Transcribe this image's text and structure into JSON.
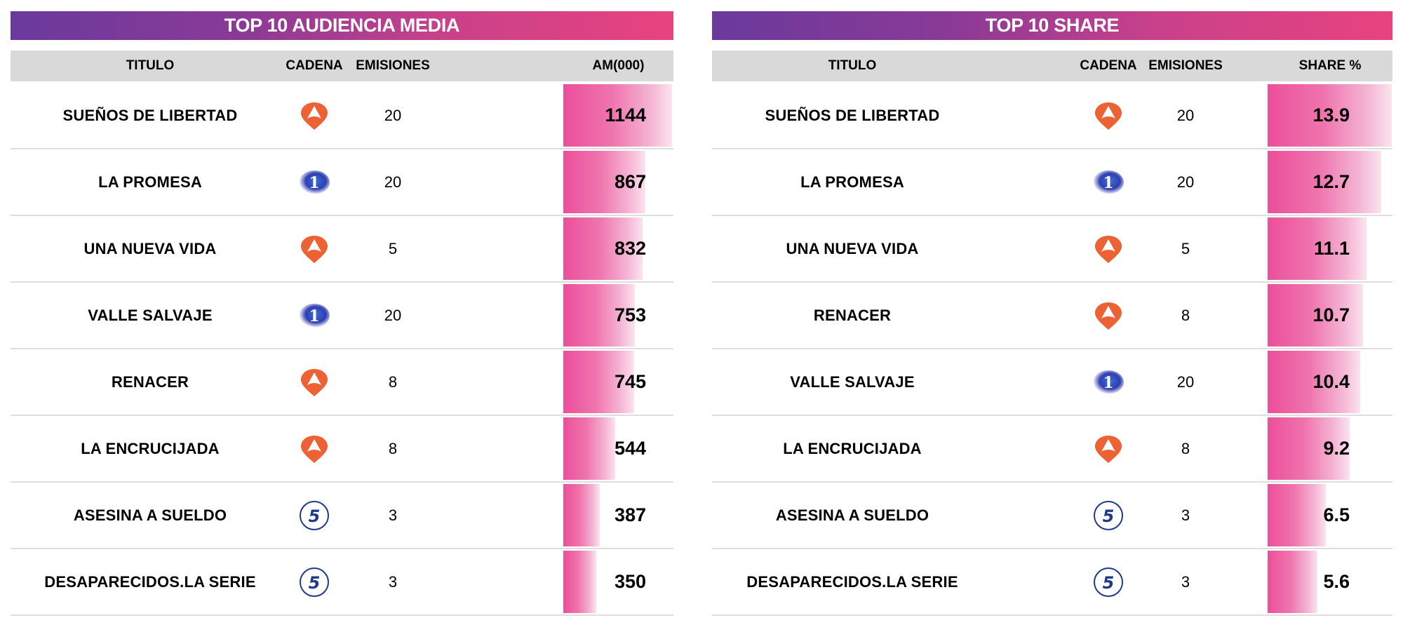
{
  "left": {
    "title": "TOP 10 AUDIENCIA MEDIA",
    "headers": {
      "titulo": "TITULO",
      "cadena": "CADENA",
      "emisiones": "EMISIONES",
      "metric": "AM(000)"
    },
    "rows": [
      {
        "titulo": "SUEÑOS DE LIBERTAD",
        "cadena": "antena3",
        "emisiones": "20",
        "value": "1144",
        "num": 1144
      },
      {
        "titulo": "LA PROMESA",
        "cadena": "la1",
        "emisiones": "20",
        "value": "867",
        "num": 867
      },
      {
        "titulo": "UNA NUEVA VIDA",
        "cadena": "antena3",
        "emisiones": "5",
        "value": "832",
        "num": 832
      },
      {
        "titulo": "VALLE SALVAJE",
        "cadena": "la1",
        "emisiones": "20",
        "value": "753",
        "num": 753
      },
      {
        "titulo": "RENACER",
        "cadena": "antena3",
        "emisiones": "8",
        "value": "745",
        "num": 745
      },
      {
        "titulo": "LA ENCRUCIJADA",
        "cadena": "antena3",
        "emisiones": "8",
        "value": "544",
        "num": 544
      },
      {
        "titulo": "ASESINA A SUELDO",
        "cadena": "telecinco",
        "emisiones": "3",
        "value": "387",
        "num": 387
      },
      {
        "titulo": "DESAPARECIDOS.LA SERIE",
        "cadena": "telecinco",
        "emisiones": "3",
        "value": "350",
        "num": 350
      }
    ]
  },
  "right": {
    "title": "TOP 10 SHARE",
    "headers": {
      "titulo": "TITULO",
      "cadena": "CADENA",
      "emisiones": "EMISIONES",
      "metric": "SHARE %"
    },
    "rows": [
      {
        "titulo": "SUEÑOS DE LIBERTAD",
        "cadena": "antena3",
        "emisiones": "20",
        "value": "13.9",
        "num": 13.9
      },
      {
        "titulo": "LA PROMESA",
        "cadena": "la1",
        "emisiones": "20",
        "value": "12.7",
        "num": 12.7
      },
      {
        "titulo": "UNA NUEVA VIDA",
        "cadena": "antena3",
        "emisiones": "5",
        "value": "11.1",
        "num": 11.1
      },
      {
        "titulo": "RENACER",
        "cadena": "antena3",
        "emisiones": "8",
        "value": "10.7",
        "num": 10.7
      },
      {
        "titulo": "VALLE SALVAJE",
        "cadena": "la1",
        "emisiones": "20",
        "value": "10.4",
        "num": 10.4
      },
      {
        "titulo": "LA ENCRUCIJADA",
        "cadena": "antena3",
        "emisiones": "8",
        "value": "9.2",
        "num": 9.2
      },
      {
        "titulo": "ASESINA A SUELDO",
        "cadena": "telecinco",
        "emisiones": "3",
        "value": "6.5",
        "num": 6.5
      },
      {
        "titulo": "DESAPARECIDOS.LA SERIE",
        "cadena": "telecinco",
        "emisiones": "3",
        "value": "5.6",
        "num": 5.6
      }
    ]
  },
  "colors": {
    "title_gradient_start": "#6a3a9c",
    "title_gradient_end": "#e8437f",
    "header_bg": "#d9d9d9",
    "bar_start": "#ec4f9a",
    "bar_end": "#fbe3ef",
    "antena3": "#ec6234",
    "la1": "#2f3fb0",
    "telecinco": "#1f3a8c"
  },
  "chart_data": [
    {
      "type": "table",
      "title": "TOP 10 AUDIENCIA MEDIA",
      "columns": [
        "TITULO",
        "CADENA",
        "EMISIONES",
        "AM(000)"
      ],
      "categories": [
        "SUEÑOS DE LIBERTAD",
        "LA PROMESA",
        "UNA NUEVA VIDA",
        "VALLE SALVAJE",
        "RENACER",
        "LA ENCRUCIJADA",
        "ASESINA A SUELDO",
        "DESAPARECIDOS.LA SERIE"
      ],
      "cadena": [
        "Antena 3",
        "La 1",
        "Antena 3",
        "La 1",
        "Antena 3",
        "Antena 3",
        "Telecinco",
        "Telecinco"
      ],
      "emisiones": [
        20,
        20,
        5,
        20,
        8,
        8,
        3,
        3
      ],
      "values": [
        1144,
        867,
        832,
        753,
        745,
        544,
        387,
        350
      ],
      "ylabel": "AM(000)"
    },
    {
      "type": "table",
      "title": "TOP 10 SHARE",
      "columns": [
        "TITULO",
        "CADENA",
        "EMISIONES",
        "SHARE %"
      ],
      "categories": [
        "SUEÑOS DE LIBERTAD",
        "LA PROMESA",
        "UNA NUEVA VIDA",
        "RENACER",
        "VALLE SALVAJE",
        "LA ENCRUCIJADA",
        "ASESINA A SUELDO",
        "DESAPARECIDOS.LA SERIE"
      ],
      "cadena": [
        "Antena 3",
        "La 1",
        "Antena 3",
        "Antena 3",
        "La 1",
        "Antena 3",
        "Telecinco",
        "Telecinco"
      ],
      "emisiones": [
        20,
        20,
        5,
        8,
        20,
        8,
        3,
        3
      ],
      "values": [
        13.9,
        12.7,
        11.1,
        10.7,
        10.4,
        9.2,
        6.5,
        5.6
      ],
      "ylabel": "SHARE %"
    }
  ]
}
